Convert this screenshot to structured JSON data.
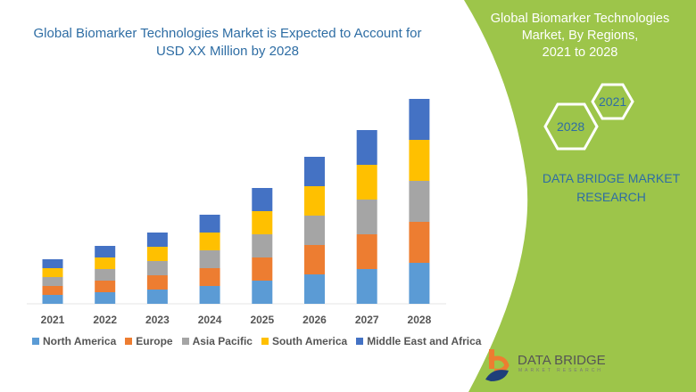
{
  "title": "Global Biomarker Technologies Market is Expected to Account for USD XX Million by 2028",
  "side_panel": {
    "title_lines": [
      "Global Biomarker Technologies",
      "Market, By Regions,",
      "2021 to 2028"
    ],
    "hex_start": "2021",
    "hex_end": "2028",
    "brand_lines": [
      "DATA BRIDGE MARKET",
      "RESEARCH"
    ],
    "panel_color": "#9dc54a"
  },
  "logo": {
    "name": "DATA BRIDGE",
    "sub": "MARKET RESEARCH"
  },
  "chart_data": {
    "type": "bar",
    "stacked": true,
    "categories": [
      "2021",
      "2022",
      "2023",
      "2024",
      "2025",
      "2026",
      "2027",
      "2028"
    ],
    "series": [
      {
        "name": "North America",
        "color": "#5b9bd5",
        "values": [
          10,
          13,
          16,
          20,
          26,
          33,
          39,
          46
        ]
      },
      {
        "name": "Europe",
        "color": "#ed7d31",
        "values": [
          10,
          13,
          16,
          20,
          26,
          33,
          39,
          46
        ]
      },
      {
        "name": "Asia Pacific",
        "color": "#a5a5a5",
        "values": [
          10,
          13,
          16,
          20,
          26,
          33,
          39,
          46
        ]
      },
      {
        "name": "South America",
        "color": "#ffc000",
        "values": [
          10,
          13,
          16,
          20,
          26,
          33,
          39,
          46
        ]
      },
      {
        "name": "Middle East and Africa",
        "color": "#4472c4",
        "values": [
          10,
          13,
          16,
          20,
          26,
          33,
          39,
          46
        ]
      }
    ],
    "xlabel": "",
    "ylabel": "",
    "y_axis_visible": false,
    "grid": false,
    "legend": "bottom"
  }
}
